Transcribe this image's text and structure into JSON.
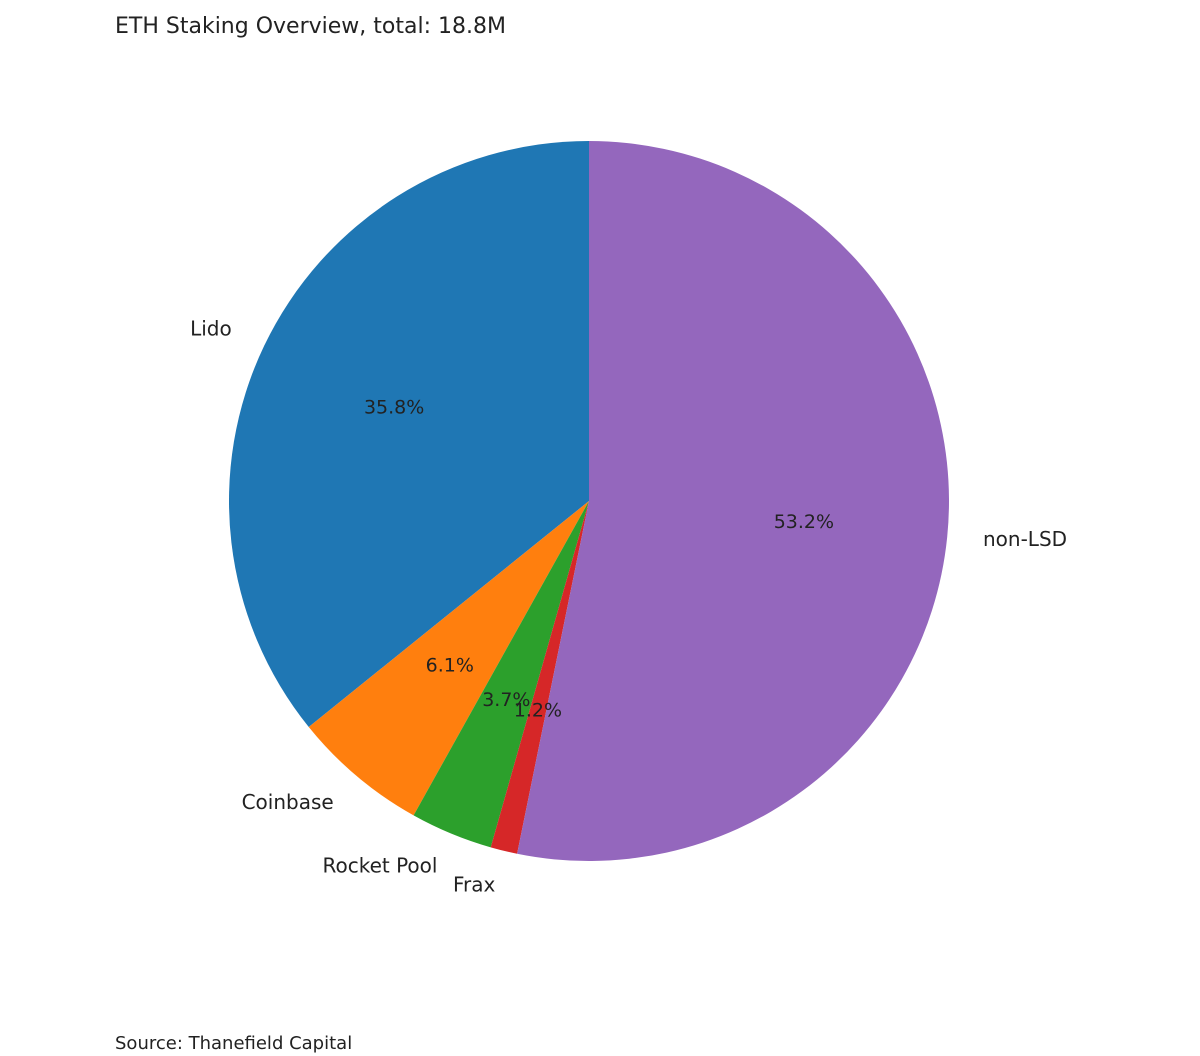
{
  "chart_data": {
    "type": "pie",
    "title": "ETH Staking Overview, total: 18.8M",
    "source": "Source: Thanefield Capital",
    "slices": [
      {
        "label": "Lido",
        "percent": 35.8,
        "color": "#1f77b4"
      },
      {
        "label": "Coinbase",
        "percent": 6.1,
        "color": "#ff7f0e"
      },
      {
        "label": "Rocket Pool",
        "percent": 3.7,
        "color": "#2ca02c"
      },
      {
        "label": "Frax",
        "percent": 1.2,
        "color": "#d62728"
      },
      {
        "label": "non-LSD",
        "percent": 53.2,
        "color": "#9467bd"
      }
    ],
    "start_angle": "top",
    "direction": "counterclockwise"
  }
}
